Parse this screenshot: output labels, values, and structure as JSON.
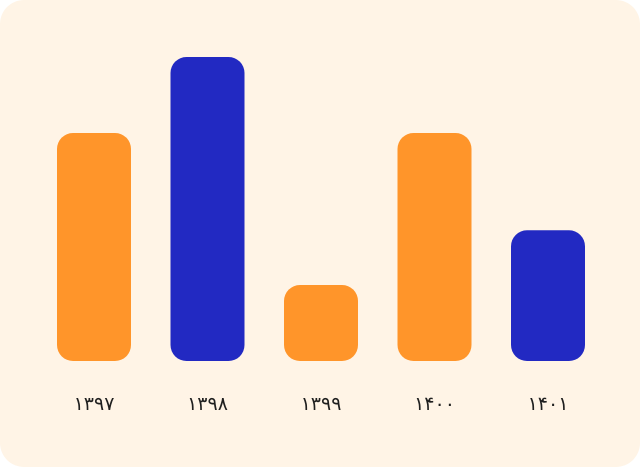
{
  "colors": {
    "background": "#fff4e6",
    "orange": "#ff952a",
    "blue": "#2229c2",
    "label": "#1f1f1f"
  },
  "chart_data": {
    "type": "bar",
    "categories": [
      "۱۳۹۷",
      "۱۳۹۸",
      "۱۳۹۹",
      "۱۴۰۰",
      "۱۴۰۱"
    ],
    "values": [
      75,
      100,
      25,
      75,
      43
    ],
    "bar_colors": [
      "orange",
      "blue",
      "orange",
      "orange",
      "blue"
    ],
    "title": "",
    "xlabel": "",
    "ylabel": "",
    "ylim": [
      0,
      100
    ],
    "grid": false,
    "legend": "none"
  }
}
